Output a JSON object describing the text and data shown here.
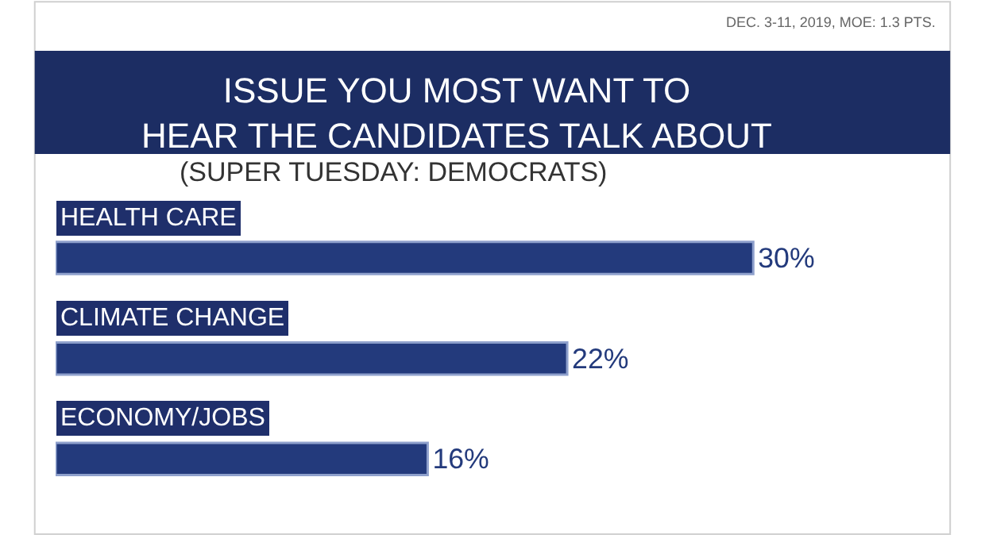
{
  "chart_data": {
    "type": "bar",
    "orientation": "horizontal",
    "title": "ISSUE YOU MOST WANT TO\nHEAR THE CANDIDATES TALK ABOUT",
    "subtitle": "(SUPER TUESDAY: DEMOCRATS)",
    "categories": [
      "HEALTH CARE",
      "CLIMATE CHANGE",
      "ECONOMY/JOBS"
    ],
    "values": [
      30,
      22,
      16
    ],
    "value_labels": [
      "30%",
      "22%",
      "16%"
    ],
    "color": "#233a7c",
    "annotations": [
      "DEC. 3-11, 2019, MOE: 1.3 PTS."
    ]
  }
}
